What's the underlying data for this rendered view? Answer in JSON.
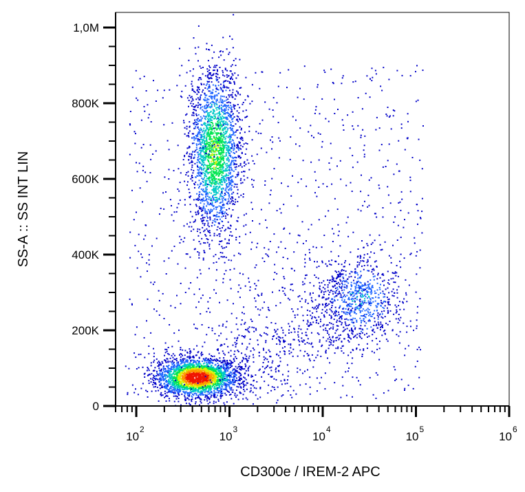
{
  "chart_data": {
    "type": "scatter",
    "title": "",
    "xlabel": "CD300e / IREM-2 APC",
    "ylabel": "SS-A :: SS INT LIN",
    "x_scale": "log",
    "y_scale": "linear",
    "xlim": [
      60,
      1000000
    ],
    "ylim": [
      0,
      1040000
    ],
    "x_ticks": [
      {
        "value": 100,
        "base": "10",
        "exp": "2"
      },
      {
        "value": 1000,
        "base": "10",
        "exp": "3"
      },
      {
        "value": 10000,
        "base": "10",
        "exp": "4"
      },
      {
        "value": 100000,
        "base": "10",
        "exp": "5"
      },
      {
        "value": 1000000,
        "base": "10",
        "exp": "6"
      }
    ],
    "y_ticks": [
      {
        "value": 0,
        "label": "0"
      },
      {
        "value": 200000,
        "label": "200K"
      },
      {
        "value": 400000,
        "label": "400K"
      },
      {
        "value": 600000,
        "label": "600K"
      },
      {
        "value": 800000,
        "label": "800K"
      },
      {
        "value": 1000000,
        "label": "1,0M"
      }
    ],
    "grid": false,
    "colormap": [
      "#0000c8",
      "#1e64ff",
      "#00c8c8",
      "#00e650",
      "#dcf000",
      "#ff9600",
      "#f01400"
    ],
    "populations": [
      {
        "center_x": 450,
        "center_y": 75000,
        "spread_log10x": 0.22,
        "spread_y": 26000,
        "relative_density": 1.0
      },
      {
        "center_x": 700,
        "center_y": 670000,
        "spread_log10x": 0.14,
        "spread_y": 110000,
        "relative_density": 0.55
      },
      {
        "center_x": 25000,
        "center_y": 280000,
        "spread_log10x": 0.22,
        "spread_y": 60000,
        "relative_density": 0.25
      }
    ]
  }
}
